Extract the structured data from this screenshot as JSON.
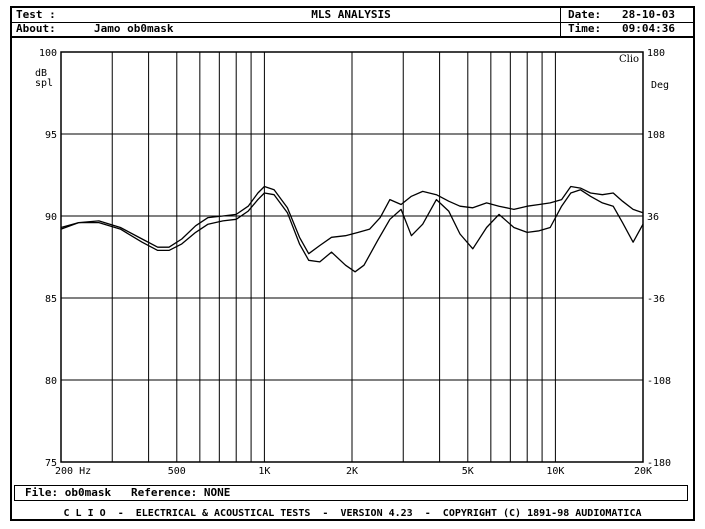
{
  "header": {
    "test_label": "Test :",
    "title": "MLS ANALYSIS",
    "date_label": "Date:",
    "date_value": "28-10-03",
    "about_label": "About:",
    "about_value": "Jamo ob0mask",
    "time_label": "Time:",
    "time_value": "09:04:36"
  },
  "footer": {
    "file_label": "File:",
    "file_value": "ob0mask",
    "reference_label": "Reference:",
    "reference_value": "NONE",
    "banner": "C L I O  -  ELECTRICAL & ACOUSTICAL TESTS  -  VERSION 4.23  -  COPYRIGHT (C) 1891-98 AUDIOMATICA"
  },
  "chart_data": {
    "type": "line",
    "title": "",
    "logo": "Clio",
    "x_scale": "log",
    "xlim": [
      200,
      20000
    ],
    "x_ticks": [
      {
        "value": 200,
        "label": "200  Hz"
      },
      {
        "value": 500,
        "label": "500"
      },
      {
        "value": 1000,
        "label": "1K"
      },
      {
        "value": 2000,
        "label": "2K"
      },
      {
        "value": 5000,
        "label": "5K"
      },
      {
        "value": 10000,
        "label": "10K"
      },
      {
        "value": 20000,
        "label": "20K"
      }
    ],
    "ylabel": "dB spl",
    "ylabel_lines": [
      "dB",
      "spl"
    ],
    "ylim": [
      75,
      100
    ],
    "y_ticks": [
      75,
      80,
      85,
      90,
      95,
      100
    ],
    "y2label": "Deg",
    "y2lim": [
      -180,
      180
    ],
    "y2_ticks": [
      -180,
      -108,
      -36,
      36,
      108,
      180
    ],
    "grid": true,
    "series": [
      {
        "values": [
          [
            200,
            89.2
          ],
          [
            230,
            89.6
          ],
          [
            270,
            89.7
          ],
          [
            320,
            89.3
          ],
          [
            380,
            88.6
          ],
          [
            430,
            88.1
          ],
          [
            470,
            88.1
          ],
          [
            520,
            88.6
          ],
          [
            580,
            89.4
          ],
          [
            640,
            89.9
          ],
          [
            720,
            90.0
          ],
          [
            800,
            90.1
          ],
          [
            880,
            90.6
          ],
          [
            950,
            91.4
          ],
          [
            1000,
            91.8
          ],
          [
            1080,
            91.6
          ],
          [
            1200,
            90.5
          ],
          [
            1320,
            88.7
          ],
          [
            1420,
            87.7
          ],
          [
            1550,
            88.2
          ],
          [
            1700,
            88.7
          ],
          [
            1900,
            88.8
          ],
          [
            2100,
            89.0
          ],
          [
            2300,
            89.2
          ],
          [
            2500,
            89.9
          ],
          [
            2700,
            91.0
          ],
          [
            2950,
            90.7
          ],
          [
            3200,
            91.2
          ],
          [
            3500,
            91.5
          ],
          [
            3900,
            91.3
          ],
          [
            4300,
            90.9
          ],
          [
            4700,
            90.6
          ],
          [
            5200,
            90.5
          ],
          [
            5800,
            90.8
          ],
          [
            6400,
            90.6
          ],
          [
            7200,
            90.4
          ],
          [
            8000,
            90.6
          ],
          [
            8800,
            90.7
          ],
          [
            9600,
            90.8
          ],
          [
            10500,
            91.0
          ],
          [
            11300,
            91.8
          ],
          [
            12200,
            91.7
          ],
          [
            13200,
            91.4
          ],
          [
            14500,
            91.3
          ],
          [
            15800,
            91.4
          ],
          [
            17000,
            90.9
          ],
          [
            18500,
            90.4
          ],
          [
            20000,
            90.2
          ]
        ]
      },
      {
        "values": [
          [
            200,
            89.3
          ],
          [
            230,
            89.6
          ],
          [
            270,
            89.6
          ],
          [
            320,
            89.2
          ],
          [
            380,
            88.4
          ],
          [
            430,
            87.9
          ],
          [
            470,
            87.9
          ],
          [
            520,
            88.3
          ],
          [
            580,
            89.0
          ],
          [
            640,
            89.5
          ],
          [
            720,
            89.7
          ],
          [
            800,
            89.8
          ],
          [
            880,
            90.3
          ],
          [
            950,
            91.0
          ],
          [
            1000,
            91.4
          ],
          [
            1080,
            91.3
          ],
          [
            1200,
            90.2
          ],
          [
            1320,
            88.3
          ],
          [
            1420,
            87.3
          ],
          [
            1550,
            87.2
          ],
          [
            1700,
            87.8
          ],
          [
            1900,
            87.0
          ],
          [
            2050,
            86.6
          ],
          [
            2200,
            87.0
          ],
          [
            2450,
            88.5
          ],
          [
            2700,
            89.8
          ],
          [
            2950,
            90.4
          ],
          [
            3200,
            88.8
          ],
          [
            3500,
            89.5
          ],
          [
            3900,
            91.0
          ],
          [
            4300,
            90.3
          ],
          [
            4700,
            88.9
          ],
          [
            5200,
            88.0
          ],
          [
            5800,
            89.3
          ],
          [
            6400,
            90.1
          ],
          [
            7200,
            89.3
          ],
          [
            8000,
            89.0
          ],
          [
            8800,
            89.1
          ],
          [
            9600,
            89.3
          ],
          [
            10500,
            90.6
          ],
          [
            11300,
            91.4
          ],
          [
            12200,
            91.6
          ],
          [
            13200,
            91.2
          ],
          [
            14500,
            90.8
          ],
          [
            15800,
            90.6
          ],
          [
            17000,
            89.6
          ],
          [
            18500,
            88.4
          ],
          [
            20000,
            89.5
          ]
        ]
      }
    ]
  }
}
